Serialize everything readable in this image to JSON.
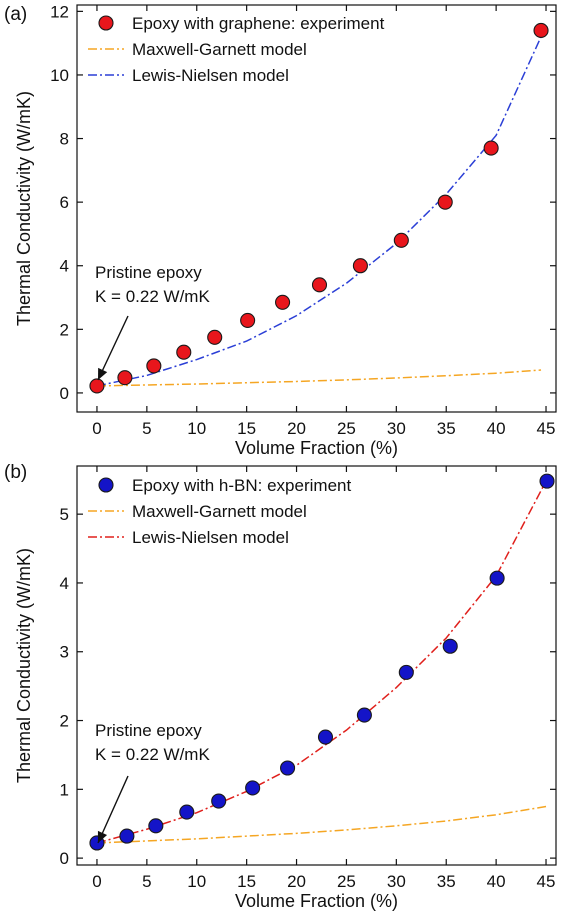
{
  "chart_data": [
    {
      "panel_label": "(a)",
      "type": "scatter",
      "xlabel": "Volume Fraction (%)",
      "ylabel": "Thermal Conductivity (W/mK)",
      "xlim": [
        -2,
        46
      ],
      "ylim": [
        -0.6,
        12.2
      ],
      "xticks": [
        0,
        5,
        10,
        15,
        20,
        25,
        30,
        35,
        40,
        45
      ],
      "yticks": [
        0,
        2,
        4,
        6,
        8,
        10,
        12
      ],
      "grid": false,
      "legend_position": "top-left",
      "annotation": {
        "line1": "Pristine epoxy",
        "line2": "K = 0.22 W/mK"
      },
      "series": [
        {
          "name": "Epoxy with graphene: experiment",
          "kind": "points",
          "color": "#e8161c",
          "x": [
            0,
            2.8,
            5.7,
            8.7,
            11.8,
            15.1,
            18.6,
            22.3,
            26.4,
            30.5,
            34.9,
            39.5,
            44.5
          ],
          "y": [
            0.22,
            0.48,
            0.85,
            1.28,
            1.75,
            2.28,
            2.85,
            3.4,
            4.0,
            4.8,
            6.0,
            7.7,
            11.4
          ]
        },
        {
          "name": "Maxwell-Garnett model",
          "kind": "dashdot",
          "color": "#f5a623",
          "x": [
            0,
            5,
            10,
            15,
            20,
            25,
            30,
            35,
            40,
            44.5
          ],
          "y": [
            0.22,
            0.25,
            0.28,
            0.32,
            0.36,
            0.41,
            0.47,
            0.54,
            0.62,
            0.72
          ]
        },
        {
          "name": "Lewis-Nielsen model",
          "kind": "dashdot",
          "color": "#2b3fd6",
          "x": [
            0,
            5,
            10,
            15,
            20,
            25,
            30,
            35,
            40,
            44.5
          ],
          "y": [
            0.22,
            0.55,
            1.05,
            1.63,
            2.43,
            3.45,
            4.7,
            6.25,
            8.1,
            11.2
          ]
        }
      ]
    },
    {
      "panel_label": "(b)",
      "type": "scatter",
      "xlabel": "Volume Fraction (%)",
      "ylabel": "Thermal Conductivity (W/mK)",
      "xlim": [
        -2,
        46
      ],
      "ylim": [
        -0.1,
        5.7
      ],
      "xticks": [
        0,
        5,
        10,
        15,
        20,
        25,
        30,
        35,
        40,
        45
      ],
      "yticks": [
        0,
        1,
        2,
        3,
        4,
        5
      ],
      "grid": false,
      "legend_position": "top-left",
      "annotation": {
        "line1": "Pristine epoxy",
        "line2": "K = 0.22 W/mK"
      },
      "series": [
        {
          "name": "Epoxy with h-BN: experiment",
          "kind": "points",
          "color": "#1414c8",
          "x": [
            0,
            3.0,
            5.9,
            9.0,
            12.2,
            15.6,
            19.1,
            22.9,
            26.8,
            31.0,
            35.4,
            40.1,
            45.1
          ],
          "y": [
            0.22,
            0.32,
            0.47,
            0.67,
            0.83,
            1.02,
            1.31,
            1.76,
            2.08,
            2.7,
            3.08,
            4.07,
            5.48
          ]
        },
        {
          "name": "Maxwell-Garnett model",
          "kind": "dashdot",
          "color": "#f5a623",
          "x": [
            0,
            5,
            10,
            15,
            20,
            25,
            30,
            35,
            40,
            45
          ],
          "y": [
            0.22,
            0.25,
            0.28,
            0.32,
            0.36,
            0.41,
            0.47,
            0.54,
            0.63,
            0.75
          ]
        },
        {
          "name": "Lewis-Nielsen model",
          "kind": "dashdot",
          "color": "#e0201c",
          "x": [
            0,
            5,
            10,
            15,
            20,
            25,
            30,
            35,
            40,
            45
          ],
          "y": [
            0.22,
            0.42,
            0.66,
            0.97,
            1.35,
            1.86,
            2.48,
            3.2,
            4.1,
            5.48
          ]
        }
      ]
    }
  ]
}
